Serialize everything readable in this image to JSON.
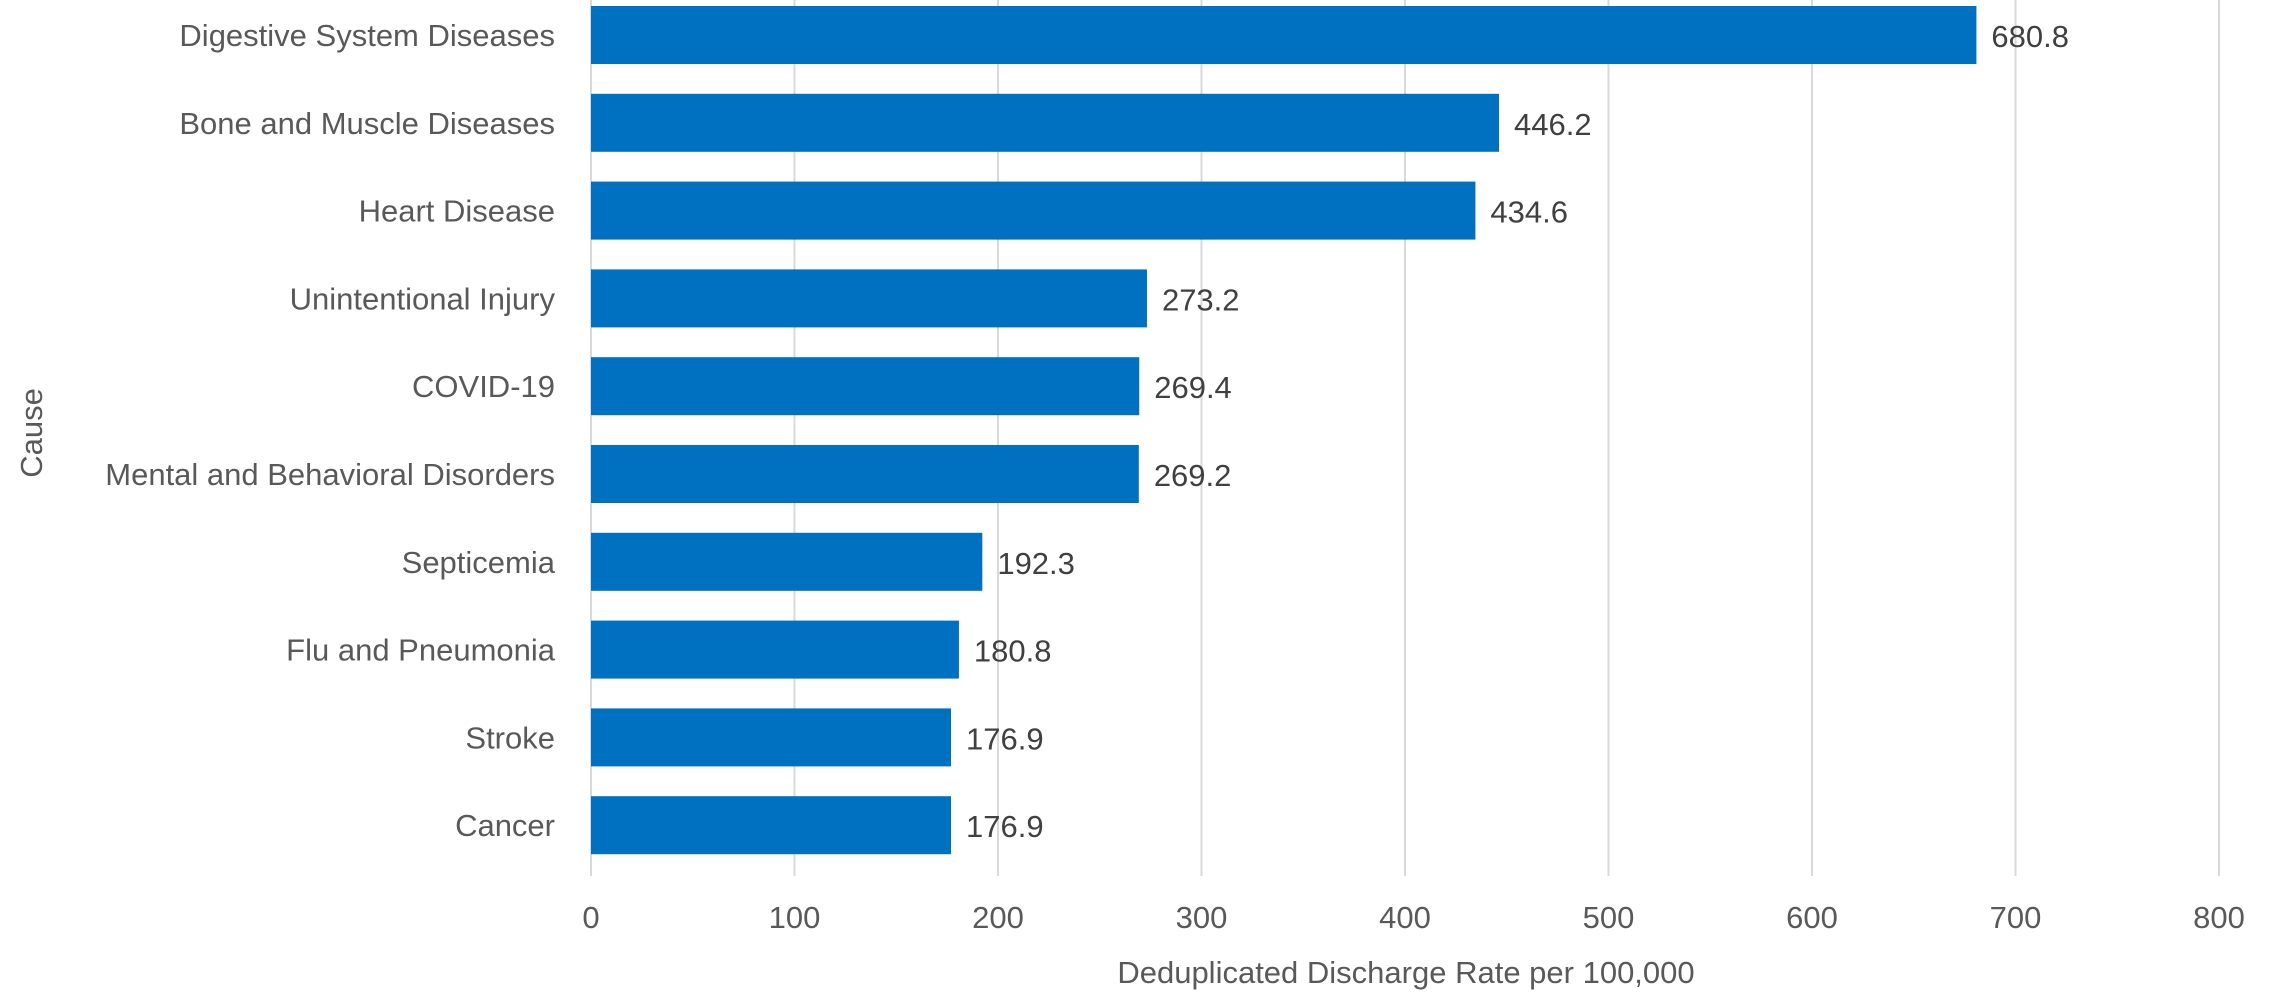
{
  "chart_data": {
    "type": "bar",
    "orientation": "horizontal",
    "categories": [
      "Digestive System Diseases",
      "Bone and Muscle Diseases",
      "Heart Disease",
      "Unintentional Injury",
      "COVID-19",
      "Mental and Behavioral Disorders",
      "Septicemia",
      "Flu and Pneumonia",
      "Stroke",
      "Cancer"
    ],
    "values": [
      680.8,
      446.2,
      434.6,
      273.2,
      269.4,
      269.2,
      192.3,
      180.8,
      176.9,
      176.9
    ],
    "data_labels": [
      "680.8",
      "446.2",
      "434.6",
      "273.2",
      "269.4",
      "269.2",
      "192.3",
      "180.8",
      "176.9",
      "176.9"
    ],
    "title": "",
    "xlabel": "Deduplicated Discharge Rate per 100,000",
    "ylabel": "Cause",
    "xlim": [
      0,
      800
    ],
    "xticks": [
      "0",
      "100",
      "200",
      "300",
      "400",
      "500",
      "600",
      "700",
      "800"
    ],
    "grid": "vertical",
    "bar_color": "#0070C0",
    "legend": "none"
  }
}
